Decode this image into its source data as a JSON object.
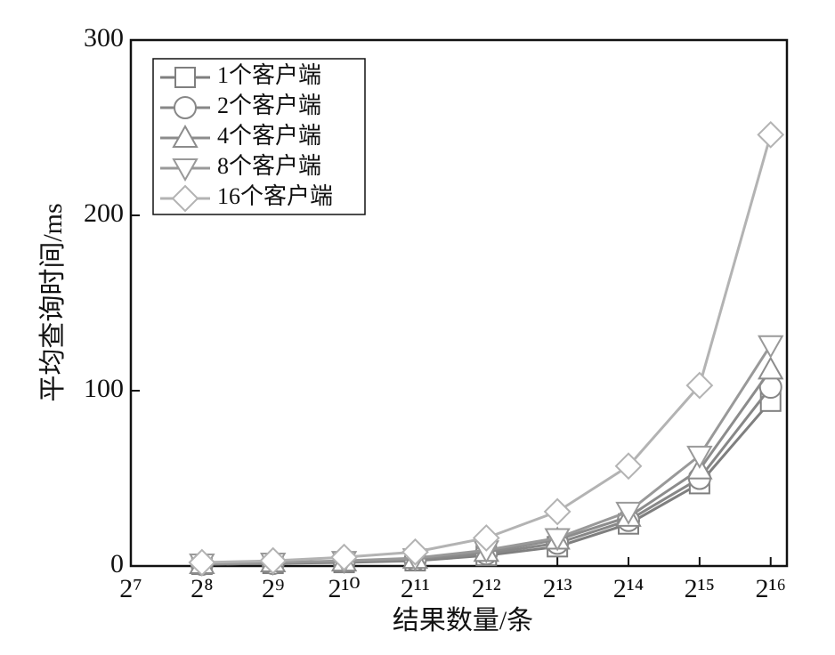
{
  "chart_data": {
    "type": "line",
    "x_label": "结果数量/条",
    "y_label": "平均查询时间/ms",
    "xscale": "log",
    "x": [
      256,
      512,
      1024,
      2048,
      4096,
      8192,
      16384,
      32768,
      65536
    ],
    "xlim": [
      128,
      76800
    ],
    "xticks": [
      {
        "value": 128,
        "label": "2⁷"
      },
      {
        "value": 256,
        "label": "2⁸"
      },
      {
        "value": 512,
        "label": "2⁹"
      },
      {
        "value": 1024,
        "label": "2¹⁰"
      },
      {
        "value": 2048,
        "label": "2¹¹"
      },
      {
        "value": 4096,
        "label": "2¹²"
      },
      {
        "value": 8192,
        "label": "2¹³"
      },
      {
        "value": 16384,
        "label": "2¹⁴"
      },
      {
        "value": 32768,
        "label": "2¹⁵"
      },
      {
        "value": 65536,
        "label": "2¹⁶"
      }
    ],
    "ylim": [
      0,
      300
    ],
    "yticks": [
      0,
      100,
      200,
      300
    ],
    "legend": "upper left",
    "series": [
      {
        "name": "1个客户端",
        "color": "#7f7f7f",
        "marker": "square",
        "values": [
          1,
          1.5,
          2,
          3,
          6,
          11,
          24,
          47,
          94
        ]
      },
      {
        "name": "2个客户端",
        "color": "#878787",
        "marker": "circle",
        "values": [
          1,
          1.5,
          2.5,
          3.5,
          7,
          13,
          26,
          50,
          102
        ]
      },
      {
        "name": "4个客户端",
        "color": "#8c8c8c",
        "marker": "triangle-up",
        "values": [
          1,
          2,
          2.5,
          4,
          8,
          15,
          28,
          55,
          112
        ]
      },
      {
        "name": "8个客户端",
        "color": "#999999",
        "marker": "triangle-down",
        "values": [
          1.5,
          2,
          3,
          4.5,
          9,
          16,
          31,
          63,
          126
        ]
      },
      {
        "name": "16个客户端",
        "color": "#b3b3b3",
        "marker": "diamond",
        "values": [
          2,
          3,
          5,
          8,
          16,
          31,
          57,
          103,
          246
        ]
      }
    ]
  }
}
